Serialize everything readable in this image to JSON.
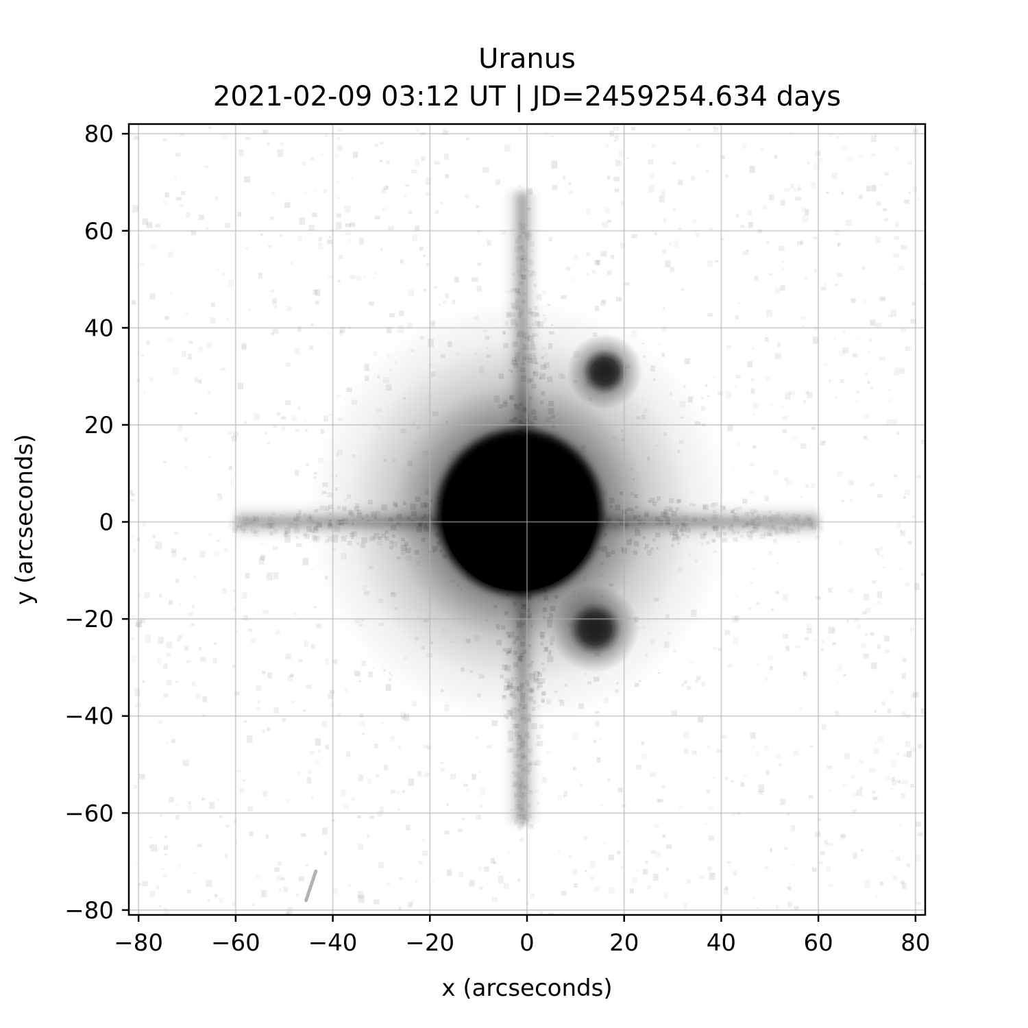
{
  "chart_data": {
    "type": "heatmap",
    "title": "Uranus",
    "subtitle": "2021-02-09 03:12 UT | JD=2459254.634 days",
    "xlabel": "x (arcseconds)",
    "ylabel": "y (arcseconds)",
    "xlim": [
      -82,
      82
    ],
    "ylim": [
      -81,
      82
    ],
    "xticks": [
      -80,
      -60,
      -40,
      -20,
      0,
      20,
      40,
      60,
      80
    ],
    "yticks": [
      -80,
      -60,
      -40,
      -20,
      0,
      20,
      40,
      60,
      80
    ],
    "xtick_labels": [
      "−80",
      "−60",
      "−40",
      "−20",
      "0",
      "20",
      "40",
      "60",
      "80"
    ],
    "ytick_labels": [
      "−80",
      "−60",
      "−40",
      "−20",
      "0",
      "20",
      "40",
      "60",
      "80"
    ],
    "grid": true,
    "colormap": "gray_r",
    "sources": [
      {
        "x": -1.5,
        "y": 2,
        "radius": 17,
        "type": "saturated-disk"
      },
      {
        "x": 16,
        "y": 31,
        "radius": 3,
        "type": "point-source"
      },
      {
        "x": 14,
        "y": -22,
        "radius": 3.5,
        "type": "point-source"
      }
    ],
    "diffraction_spikes": {
      "center": [
        -1,
        0
      ],
      "horizontal_extent": [
        -60,
        60
      ],
      "vertical_extent": [
        -62,
        68
      ]
    },
    "streak": {
      "x": [
        -45.5,
        -43.5
      ],
      "y": [
        -78,
        -72
      ]
    }
  }
}
